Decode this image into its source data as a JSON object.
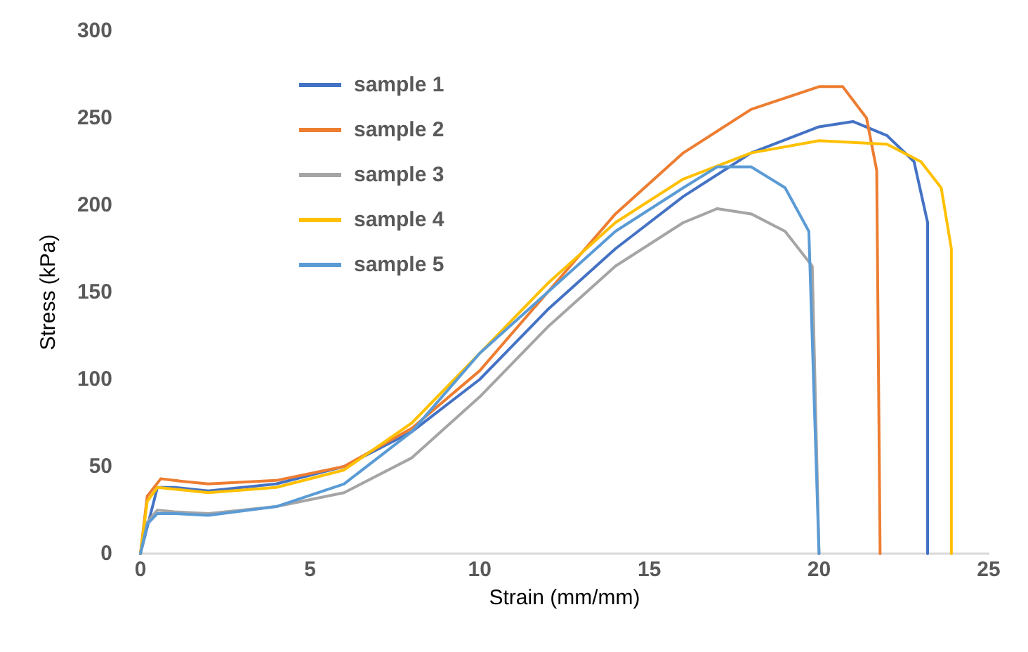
{
  "chart_data": {
    "type": "line",
    "xlabel": "Strain (mm/mm)",
    "ylabel": "Stress (kPa)",
    "xlim": [
      0,
      25
    ],
    "xticks": [
      0,
      5,
      10,
      15,
      20,
      25
    ],
    "ylim": [
      0,
      300
    ],
    "yticks": [
      0,
      50,
      100,
      150,
      200,
      250,
      300
    ],
    "grid": false,
    "legend": "top left",
    "marker": "none",
    "line_style": "solid",
    "series": [
      {
        "name": "sample 1",
        "color": "#4472c4",
        "x": [
          0,
          0.5,
          1,
          2,
          4,
          6,
          8,
          10,
          12,
          14,
          16,
          18,
          20,
          21,
          22,
          22.8,
          23.2,
          23.2
        ],
        "values": [
          0,
          38,
          38,
          36,
          40,
          50,
          70,
          100,
          140,
          175,
          205,
          230,
          245,
          248,
          240,
          225,
          190,
          0
        ]
      },
      {
        "name": "sample 2",
        "color": "#ed7d31",
        "x": [
          0,
          0.2,
          0.6,
          1,
          2,
          4,
          6,
          8,
          10,
          12,
          14,
          16,
          18,
          20,
          20.7,
          21.4,
          21.7,
          21.8
        ],
        "values": [
          0,
          33,
          43,
          42,
          40,
          42,
          50,
          72,
          105,
          150,
          195,
          230,
          255,
          268,
          268,
          250,
          220,
          0
        ]
      },
      {
        "name": "sample 3",
        "color": "#a5a5a5",
        "x": [
          0,
          0.2,
          0.5,
          1,
          2,
          4,
          6,
          8,
          10,
          12,
          14,
          16,
          17,
          18,
          19,
          19.8,
          20
        ],
        "values": [
          0,
          18,
          25,
          24,
          23,
          27,
          35,
          55,
          90,
          130,
          165,
          190,
          198,
          195,
          185,
          165,
          0
        ]
      },
      {
        "name": "sample 4",
        "color": "#ffc000",
        "x": [
          0,
          0.2,
          0.5,
          1,
          2,
          4,
          6,
          8,
          10,
          12,
          14,
          16,
          18,
          20,
          22,
          23,
          23.6,
          23.9,
          23.9
        ],
        "values": [
          0,
          30,
          38,
          37,
          35,
          38,
          48,
          75,
          115,
          155,
          190,
          215,
          230,
          237,
          235,
          225,
          210,
          175,
          0
        ]
      },
      {
        "name": "sample 5",
        "color": "#5b9bd5",
        "x": [
          0,
          0.2,
          0.5,
          1,
          2,
          4,
          6,
          8,
          10,
          12,
          14,
          16,
          17,
          18,
          19,
          19.7,
          20
        ],
        "values": [
          0,
          17,
          23,
          23,
          22,
          27,
          40,
          70,
          115,
          150,
          185,
          210,
          222,
          222,
          210,
          185,
          0
        ]
      }
    ]
  }
}
